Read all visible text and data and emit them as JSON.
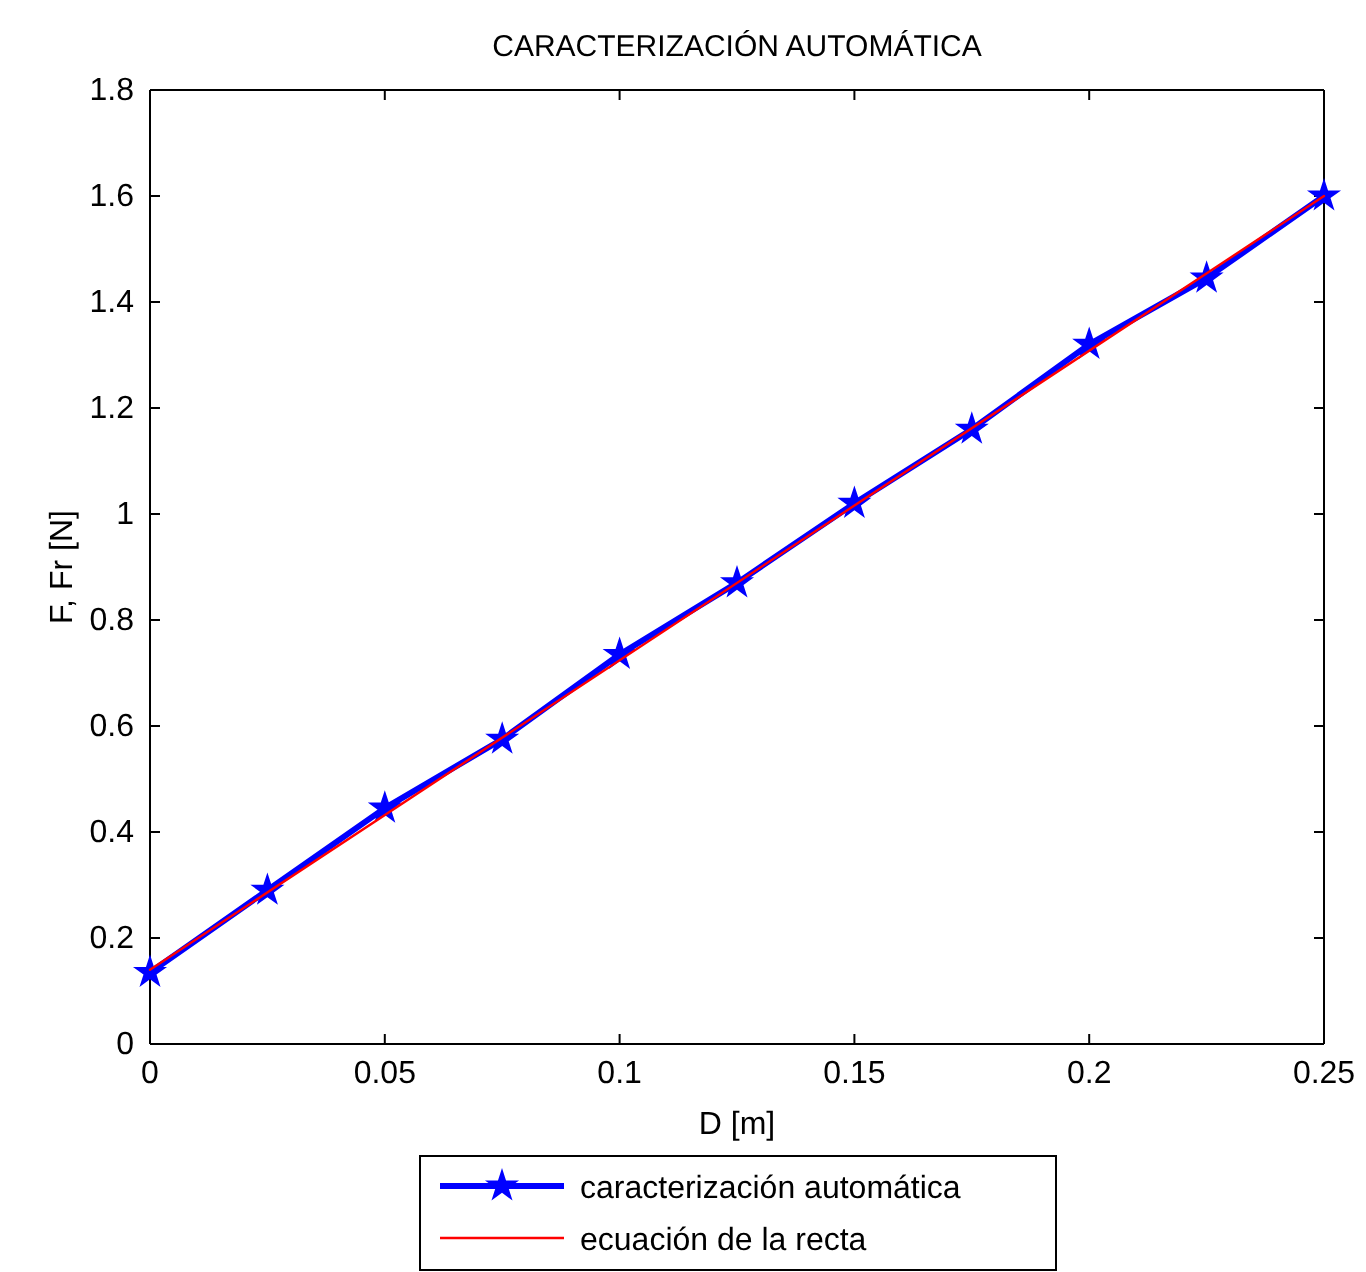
{
  "chart_data": {
    "type": "line",
    "title": "CARACTERIZACIÓN AUTOMÁTICA",
    "xlabel": "D [m]",
    "ylabel": "F, Fr [N]",
    "xlim": [
      0,
      0.25
    ],
    "xticks": [
      0,
      0.05,
      0.1,
      0.15,
      0.2,
      0.25
    ],
    "ylim": [
      0,
      1.8
    ],
    "yticks": [
      0,
      0.2,
      0.4,
      0.6,
      0.8,
      1,
      1.2,
      1.4,
      1.6,
      1.8
    ],
    "grid": false,
    "legend": "bottom",
    "series": [
      {
        "name": "caracterización automática",
        "color": "#0000ff",
        "marker": "star",
        "x": [
          0,
          0.025,
          0.05,
          0.075,
          0.1,
          0.125,
          0.15,
          0.175,
          0.2,
          0.225,
          0.25
        ],
        "values": [
          0.135,
          0.29,
          0.445,
          0.575,
          0.735,
          0.87,
          1.02,
          1.16,
          1.32,
          1.445,
          1.6
        ]
      },
      {
        "name": "ecuación de la recta",
        "color": "#ff0000",
        "marker": "none",
        "x": [
          0,
          0.25
        ],
        "values": [
          0.14,
          1.6
        ]
      }
    ]
  }
}
